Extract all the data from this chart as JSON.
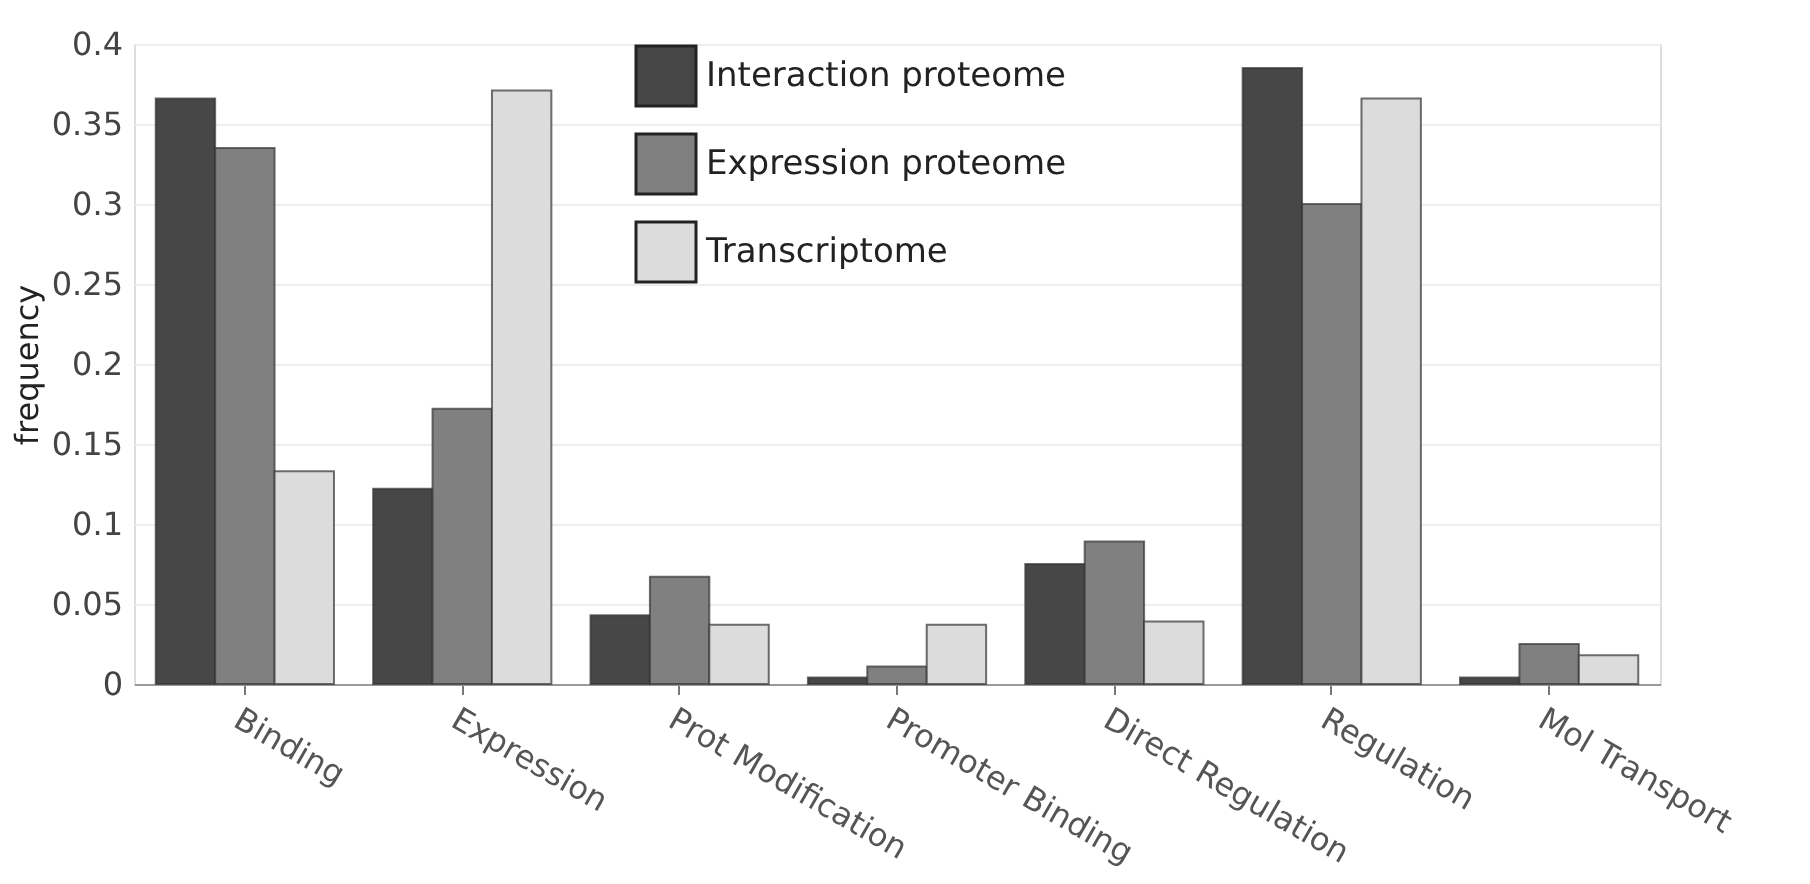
{
  "chart_data": {
    "type": "bar",
    "ylabel": "frequency",
    "categories": [
      "Binding",
      "Expression",
      "Prot Modification",
      "Promoter Binding",
      "Direct Regulation",
      "Regulation",
      "Mol Transport"
    ],
    "series": [
      {
        "name": "Interaction proteome",
        "color": "#474747",
        "values": [
          0.366,
          0.122,
          0.043,
          0.004,
          0.075,
          0.385,
          0.004
        ]
      },
      {
        "name": "Expression proteome",
        "color": "#808080",
        "values": [
          0.335,
          0.172,
          0.067,
          0.011,
          0.089,
          0.3,
          0.025
        ]
      },
      {
        "name": "Transcriptome",
        "color": "#dcdcdc",
        "values": [
          0.133,
          0.371,
          0.037,
          0.037,
          0.039,
          0.366,
          0.018
        ]
      }
    ],
    "ylim": [
      0,
      0.4
    ],
    "yticks": [
      0,
      0.05,
      0.1,
      0.15,
      0.2,
      0.25,
      0.3,
      0.35,
      0.4
    ],
    "grid": "y",
    "legend": "top"
  }
}
